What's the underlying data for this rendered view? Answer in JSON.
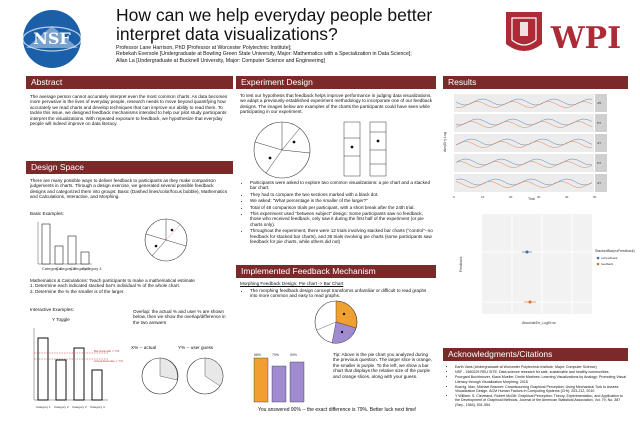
{
  "header": {
    "title": "How can we help everyday people better interpret data visualizations?",
    "authors": [
      "Professor Lane Harrison, PhD [Professor at Worcester Polytechnic Institute];",
      "Rebekah Eversole [Undergraduate at Bowling Green State University, Major: Mathematics with a Specialization in Data Science];",
      "Allan La [Undergraduate at Bucknell University, Major: Computer Science and Engineering]"
    ],
    "logo_left_text": "NSF",
    "logo_right_text": "WPI"
  },
  "abstract": {
    "heading": "Abstract",
    "body": "The average person cannot accurately interpret even the most common charts. As data becomes more pervasive in the lives of everyday people, research needs to move beyond quantifying how accurately we read charts and develop techniques that can improve our ability to read them. To tackle this issue, we designed feedback mechanisms intended to help our pilot study participants interpret the visualizations. With repeated exposure to feedback, we hypothesize that everyday people will indeed improve on data literacy."
  },
  "design_space": {
    "heading": "Design Space",
    "body": "There are many possible ways to deliver feedback to participants as they make comparison judgements in charts. Through a design exercise, we generated several possible feedback designs and categorized them into groups: Basic (Dashed lines/color/focus bubble), Mathematics and Calculations, Interactive, and Morphing.",
    "basic_label": "Basic Examples:",
    "math_text": "Mathematics & Calculations: Teach participants to make a mathematical estimate",
    "math_items": [
      "1. Determine each indicated stacked bar's individual % of the whole chart.",
      "2. Determine the % the smaller is of the larger."
    ],
    "interactive_label": "Interactive Examples:",
    "toggle_label": "Y Toggle",
    "overlap_text": "Overlap: the actual % and user % are shown below, then we show the overlap/difference in the two answers",
    "x_label": "X% -- actual",
    "y_label": "Y% -- user guess",
    "bar_categories": [
      "Category 1",
      "Category 2",
      "Category 3",
      "Category 4"
    ]
  },
  "experiment": {
    "heading": "Experiment Design",
    "body": "To test our hypothesis that feedback helps improve performance in judging data visualizations, we adapt a previously-established experiment methodology to incorporate one of our feedback designs. The images below are examples of the charts the participants could have seen while participating in our experiment.",
    "bullets": [
      "Participants were asked to explore two common visualizations: a pie chart and a stacked bar chart.",
      "They had to compare the two sections marked with a black dot.",
      "We asked: \"What percentage is the smaller of the larger?\"",
      "Total of 48 comparison trials per participant, with a short break after the 24th trial.",
      "This experiment used \"between subject\" design: Some participants saw no feedback, those who received feedback, only saw it during the first half of the experiment (or pie charts only).",
      "Throughout the experiment, there were 12 trials involving stacked bar charts (\"control\"--no feedback for stacked bar charts), and 36 trials involving pie charts (some participants saw feedback for pie charts, while others did not)"
    ]
  },
  "implemented": {
    "heading": "Implemented Feedback Mechanism",
    "sub": "Morphing Feedback Design: Pie chart -> Bar Chart",
    "bullets": [
      "The morphing feedback design concept transforms unfamiliar or difficult to read graphs into more common and easy to read graphs."
    ],
    "bar_labels": [
      "68%",
      "79%",
      "90%"
    ],
    "tip": "Tip: Above is the pie chart you analyzed during the previous question. The larger slice is orange, the smaller is purple. To the left, we show a bar chart that displays the relative size of the purple and orange slices, along with your guess.",
    "answer": "You answered 90% -- the exact difference is 79%. Better luck next time!"
  },
  "results": {
    "heading": "Results",
    "ylabel": "Abs(Err) Log",
    "xlabel": "Trial",
    "legend_title": "StackedBar(noFeedback)",
    "legend_items": [
      "noFeedback",
      "feedback"
    ],
    "ylabel2": "Feedback",
    "xlabel2": "AbsoluteErr_LogError",
    "x_ticks": [
      "0",
      "10",
      "20",
      "30",
      "40",
      "50"
    ],
    "facet_labels": [
      "4/5",
      "5/7",
      "4/7",
      "6/7",
      "4/7"
    ]
  },
  "ack": {
    "heading": "Acknowledgments/Citations",
    "items": [
      "Earth Vans (Undergraduate at Worcester Polytechnic Institute, Major: Computer Science)",
      "NSF - 1560229 REU SITE: Data science research for safe, sustainable and healthy communities",
      "Poorgard Buchheuzer, Klaus Mueller, Dmitri Martinez: Learning Visualizations by Analogy: Promoting Visual Literacy through Visualization Morphing, 2015",
      "Koenig, Max, Michael Brauner: Crowdsourcing Graphical Perception: Using Mechanical Turk to Assess Visualization Design. ACM Human Factors in Computing Systems (CHI): 203-212, 2010",
      "Y William. S. Cleveland, Robert McGill: Graphical Perception: Theory, Experimentation, and Application to the Development of Graphical Methods. Journal of the American Statistical Association, Vol. 79, No. 387 (Sep., 1984), 531-554"
    ]
  },
  "colors": {
    "header_bg": "#7b2a2a",
    "orange": "#f0a030",
    "purple": "#a08ad0",
    "series_blue": "#3b6fb0",
    "series_orange": "#e07030"
  }
}
